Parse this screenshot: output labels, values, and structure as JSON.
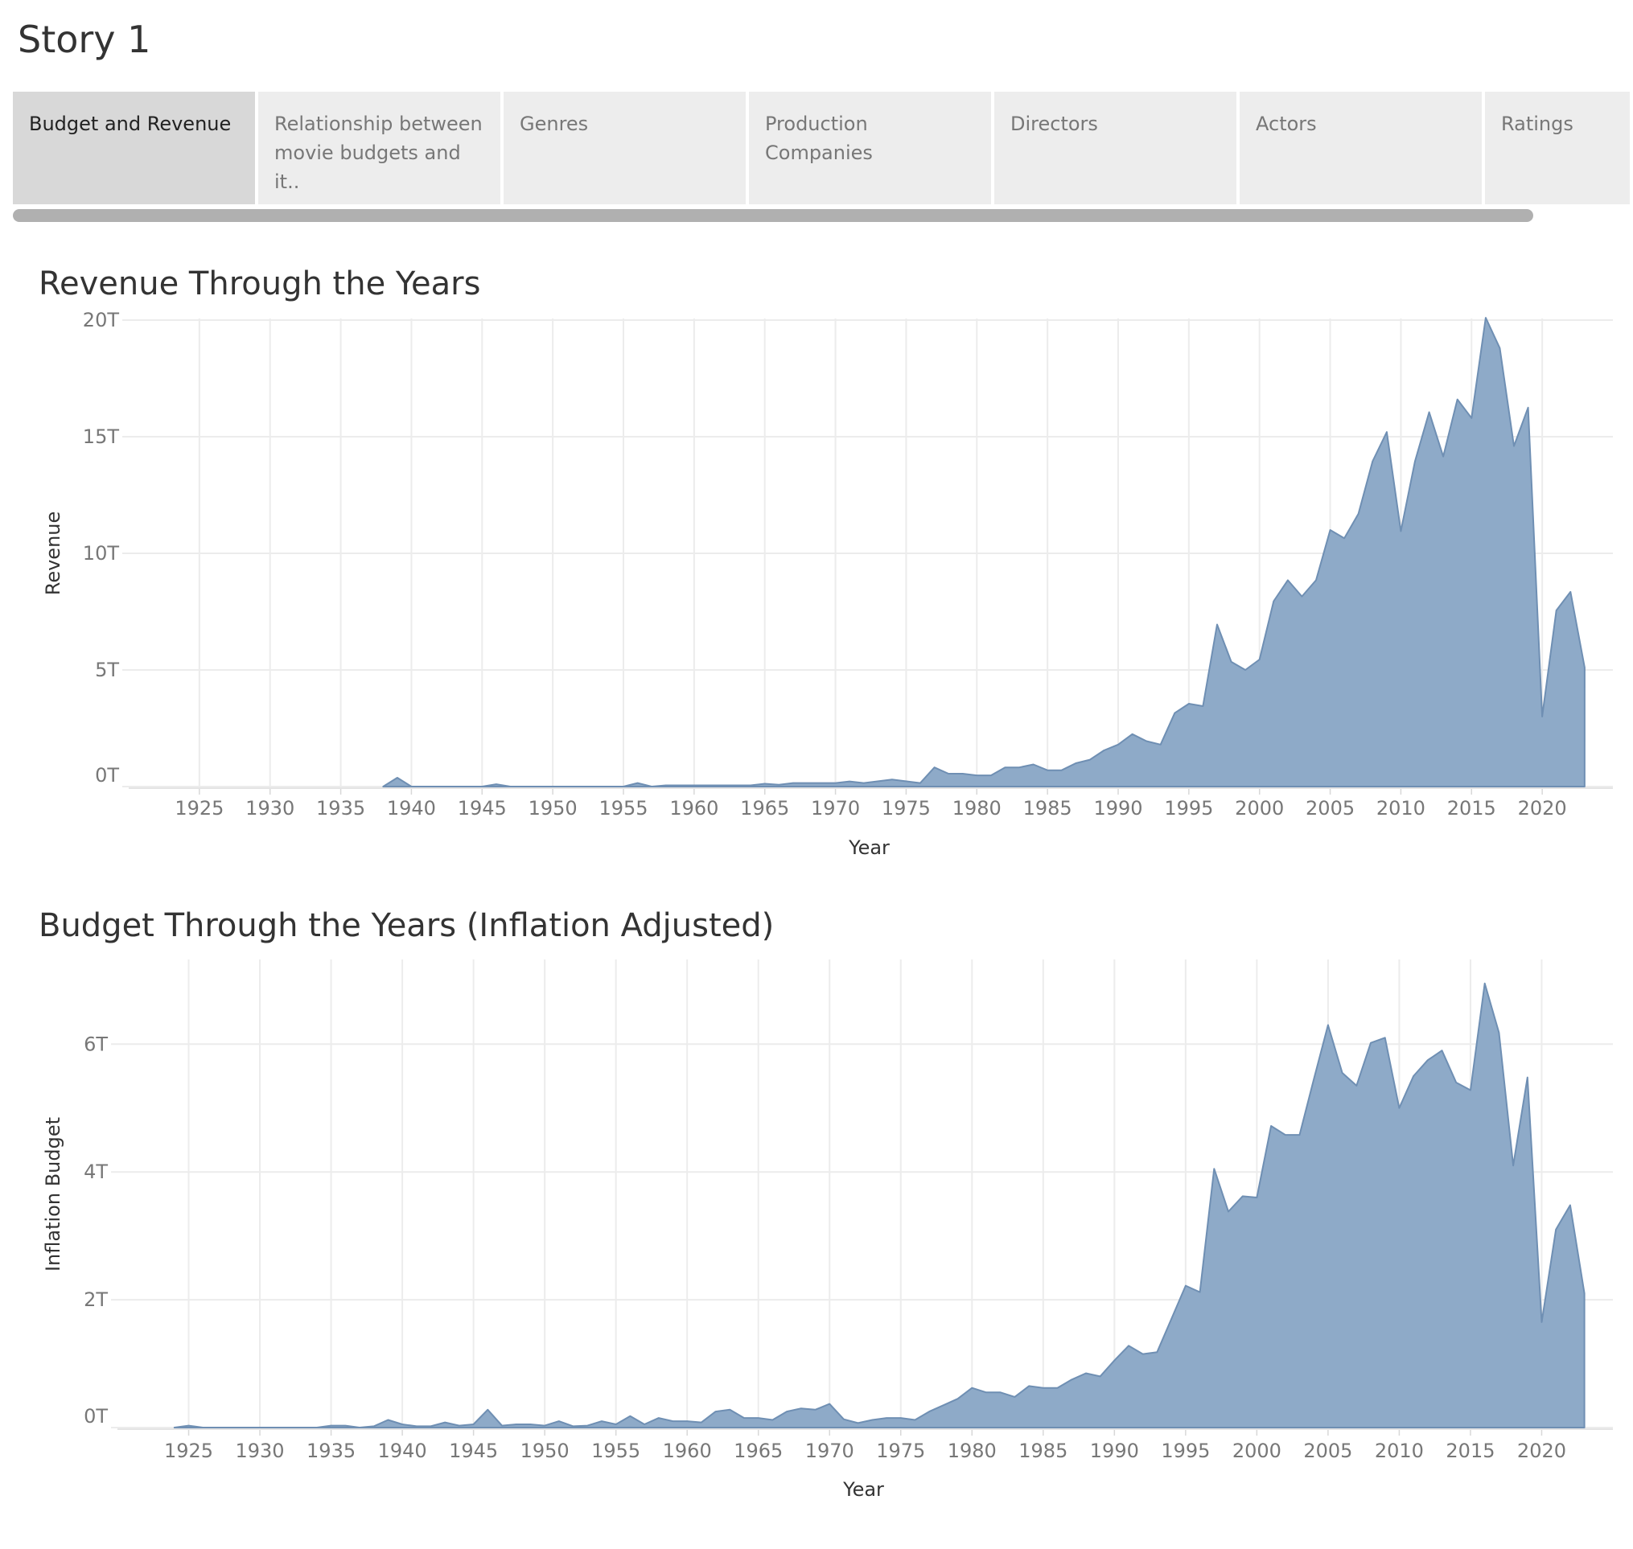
{
  "story": {
    "title": "Story 1"
  },
  "tabs": [
    {
      "label": "Budget and Revenue",
      "active": true
    },
    {
      "label": "Relationship between movie budgets and it..",
      "active": false
    },
    {
      "label": "Genres",
      "active": false
    },
    {
      "label": "Production Companies",
      "active": false
    },
    {
      "label": "Directors",
      "active": false
    },
    {
      "label": "Actors",
      "active": false
    },
    {
      "label": "Ratings",
      "active": false
    }
  ],
  "colors": {
    "area_fill": "#8eaac8",
    "area_stroke": "#6f8fb3",
    "grid": "#ececec",
    "tick_text": "#777777"
  },
  "chart_data": [
    {
      "type": "area",
      "title": "Revenue Through the Years",
      "xlabel": "Year",
      "ylabel": "Revenue",
      "xlim": [
        1920,
        2025
      ],
      "ylim": [
        0,
        20
      ],
      "x_ticks": [
        1925,
        1930,
        1935,
        1940,
        1945,
        1950,
        1955,
        1960,
        1965,
        1970,
        1975,
        1980,
        1985,
        1990,
        1995,
        2000,
        2005,
        2010,
        2015,
        2020
      ],
      "y_ticks": [
        0,
        5,
        10,
        15,
        20
      ],
      "y_tick_labels": [
        "0T",
        "5T",
        "10T",
        "15T",
        "20T"
      ],
      "grid": true,
      "series": [
        {
          "x": [
            1938,
            1939,
            1940,
            1945,
            1946,
            1947,
            1955,
            1956,
            1957,
            1958,
            1964,
            1965,
            1966,
            1967,
            1970,
            1971,
            1972,
            1974,
            1976,
            1977,
            1978,
            1979,
            1980,
            1981,
            1982,
            1983,
            1984,
            1985,
            1986,
            1987,
            1988,
            1989,
            1990,
            1991,
            1992,
            1993,
            1994,
            1995,
            1996,
            1997,
            1998,
            1999,
            2000,
            2001,
            2002,
            2003,
            2004,
            2005,
            2006,
            2007,
            2008,
            2009,
            2010,
            2011,
            2012,
            2013,
            2014,
            2015,
            2016,
            2017,
            2018,
            2019,
            2020,
            2021,
            2022,
            2023
          ],
          "values": [
            0.0,
            0.38,
            0.0,
            0.0,
            0.1,
            0.0,
            0.0,
            0.15,
            0.0,
            0.05,
            0.05,
            0.12,
            0.08,
            0.15,
            0.15,
            0.22,
            0.15,
            0.3,
            0.15,
            0.82,
            0.55,
            0.55,
            0.48,
            0.48,
            0.82,
            0.82,
            0.95,
            0.7,
            0.7,
            1.0,
            1.15,
            1.55,
            1.8,
            2.25,
            1.95,
            1.8,
            3.15,
            3.55,
            3.45,
            6.95,
            5.35,
            5.0,
            5.45,
            7.95,
            8.85,
            8.15,
            8.85,
            11.0,
            10.65,
            11.7,
            13.95,
            15.2,
            10.95,
            13.95,
            16.05,
            14.15,
            16.6,
            15.8,
            20.1,
            18.8,
            14.6,
            16.25,
            3.0,
            7.55,
            8.35,
            5.1
          ]
        }
      ]
    },
    {
      "type": "area",
      "title": "Budget Through the Years (Inflation Adjusted)",
      "xlabel": "Year",
      "ylabel": "Inflation Budget",
      "xlim": [
        1920,
        2025
      ],
      "ylim": [
        0,
        7.3
      ],
      "x_ticks": [
        1925,
        1930,
        1935,
        1940,
        1945,
        1950,
        1955,
        1960,
        1965,
        1970,
        1975,
        1980,
        1985,
        1990,
        1995,
        2000,
        2005,
        2010,
        2015,
        2020
      ],
      "y_ticks": [
        0,
        2,
        4,
        6
      ],
      "y_tick_labels": [
        "0T",
        "2T",
        "4T",
        "6T"
      ],
      "grid": true,
      "series": [
        {
          "x": [
            1924,
            1925,
            1926,
            1934,
            1935,
            1936,
            1937,
            1938,
            1939,
            1940,
            1941,
            1942,
            1943,
            1944,
            1945,
            1946,
            1947,
            1948,
            1949,
            1950,
            1951,
            1952,
            1953,
            1954,
            1955,
            1956,
            1957,
            1958,
            1959,
            1960,
            1961,
            1962,
            1963,
            1964,
            1965,
            1966,
            1967,
            1968,
            1969,
            1970,
            1971,
            1972,
            1973,
            1974,
            1975,
            1976,
            1977,
            1978,
            1979,
            1980,
            1981,
            1982,
            1983,
            1984,
            1985,
            1986,
            1987,
            1988,
            1989,
            1990,
            1991,
            1992,
            1993,
            1994,
            1995,
            1996,
            1997,
            1998,
            1999,
            2000,
            2001,
            2002,
            2003,
            2004,
            2005,
            2006,
            2007,
            2008,
            2009,
            2010,
            2011,
            2012,
            2013,
            2014,
            2015,
            2016,
            2017,
            2018,
            2019,
            2020,
            2021,
            2022,
            2023
          ],
          "values": [
            0.0,
            0.03,
            0.0,
            0.0,
            0.03,
            0.03,
            0.0,
            0.02,
            0.12,
            0.05,
            0.02,
            0.02,
            0.08,
            0.03,
            0.05,
            0.28,
            0.03,
            0.05,
            0.05,
            0.03,
            0.1,
            0.02,
            0.03,
            0.1,
            0.05,
            0.18,
            0.05,
            0.15,
            0.1,
            0.1,
            0.08,
            0.25,
            0.28,
            0.15,
            0.15,
            0.12,
            0.25,
            0.3,
            0.28,
            0.37,
            0.13,
            0.07,
            0.12,
            0.15,
            0.15,
            0.12,
            0.25,
            0.35,
            0.45,
            0.62,
            0.55,
            0.55,
            0.48,
            0.65,
            0.62,
            0.62,
            0.75,
            0.85,
            0.8,
            1.05,
            1.28,
            1.15,
            1.18,
            1.7,
            2.22,
            2.12,
            4.05,
            3.38,
            3.62,
            3.6,
            4.72,
            4.58,
            4.58,
            5.45,
            6.3,
            5.55,
            5.35,
            6.02,
            6.1,
            5.0,
            5.5,
            5.75,
            5.9,
            5.4,
            5.28,
            6.95,
            6.18,
            4.1,
            5.48,
            1.65,
            3.1,
            3.48,
            2.1
          ]
        }
      ]
    }
  ]
}
